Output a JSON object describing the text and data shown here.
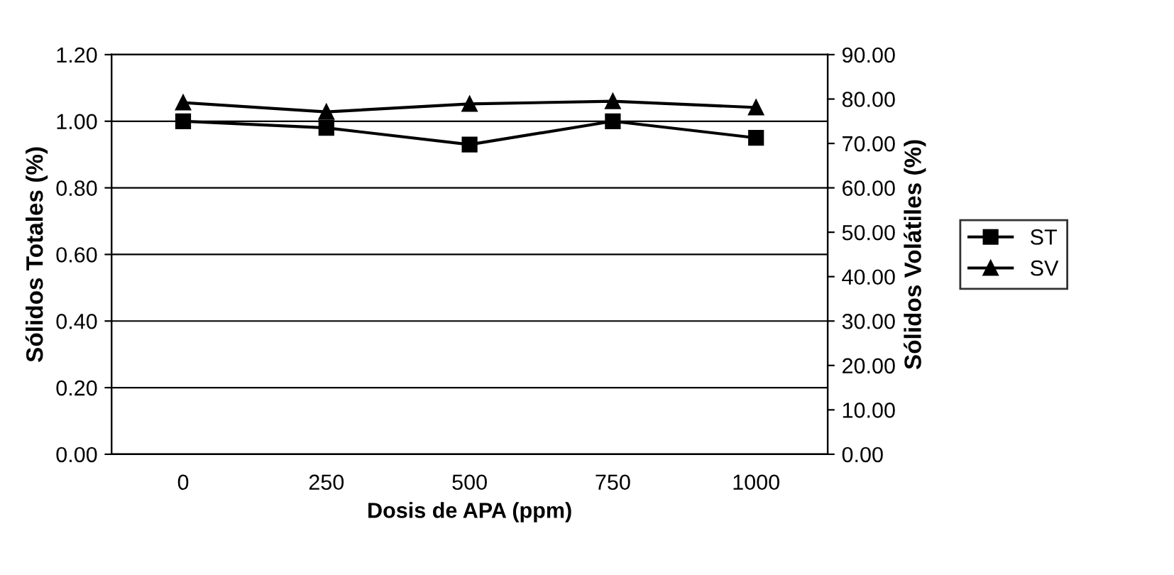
{
  "chart_data": {
    "type": "line",
    "xlabel": "Dosis de APA (ppm)",
    "ylabel": "Sólidos Totales (%)",
    "y2label": "Sólidos Volátiles (%)",
    "categories": [
      "0",
      "250",
      "500",
      "750",
      "1000"
    ],
    "series": [
      {
        "name": "ST",
        "color": "#000000",
        "marker": "square",
        "values": [
          1.0,
          0.98,
          0.93,
          1.0,
          0.95
        ]
      },
      {
        "name": "SV",
        "color": "#000000",
        "marker": "triangle",
        "axis": "y2",
        "values": [
          79.2,
          77.1,
          78.9,
          79.5,
          78.1
        ]
      }
    ],
    "ylim": [
      0,
      1.2
    ],
    "yticks": [
      {
        "value": 0,
        "label": "0.00"
      },
      {
        "value": 0.2,
        "label": "0.20"
      },
      {
        "value": 0.4,
        "label": "0.40"
      },
      {
        "value": 0.6,
        "label": "0.60"
      },
      {
        "value": 0.8,
        "label": "0.80"
      },
      {
        "value": 1.0,
        "label": "1.00"
      },
      {
        "value": 1.2,
        "label": "1.20"
      }
    ],
    "y2lim": [
      0,
      90
    ],
    "y2ticks": [
      {
        "value": 0,
        "label": "0.00"
      },
      {
        "value": 10,
        "label": "10.00"
      },
      {
        "value": 20,
        "label": "20.00"
      },
      {
        "value": 30,
        "label": "30.00"
      },
      {
        "value": 40,
        "label": "40.00"
      },
      {
        "value": 50,
        "label": "50.00"
      },
      {
        "value": 60,
        "label": "60.00"
      },
      {
        "value": 70,
        "label": "70.00"
      },
      {
        "value": 80,
        "label": "80.00"
      },
      {
        "value": 90,
        "label": "90.00"
      }
    ],
    "grid": "y",
    "legend": "right",
    "line_style": "solid"
  }
}
